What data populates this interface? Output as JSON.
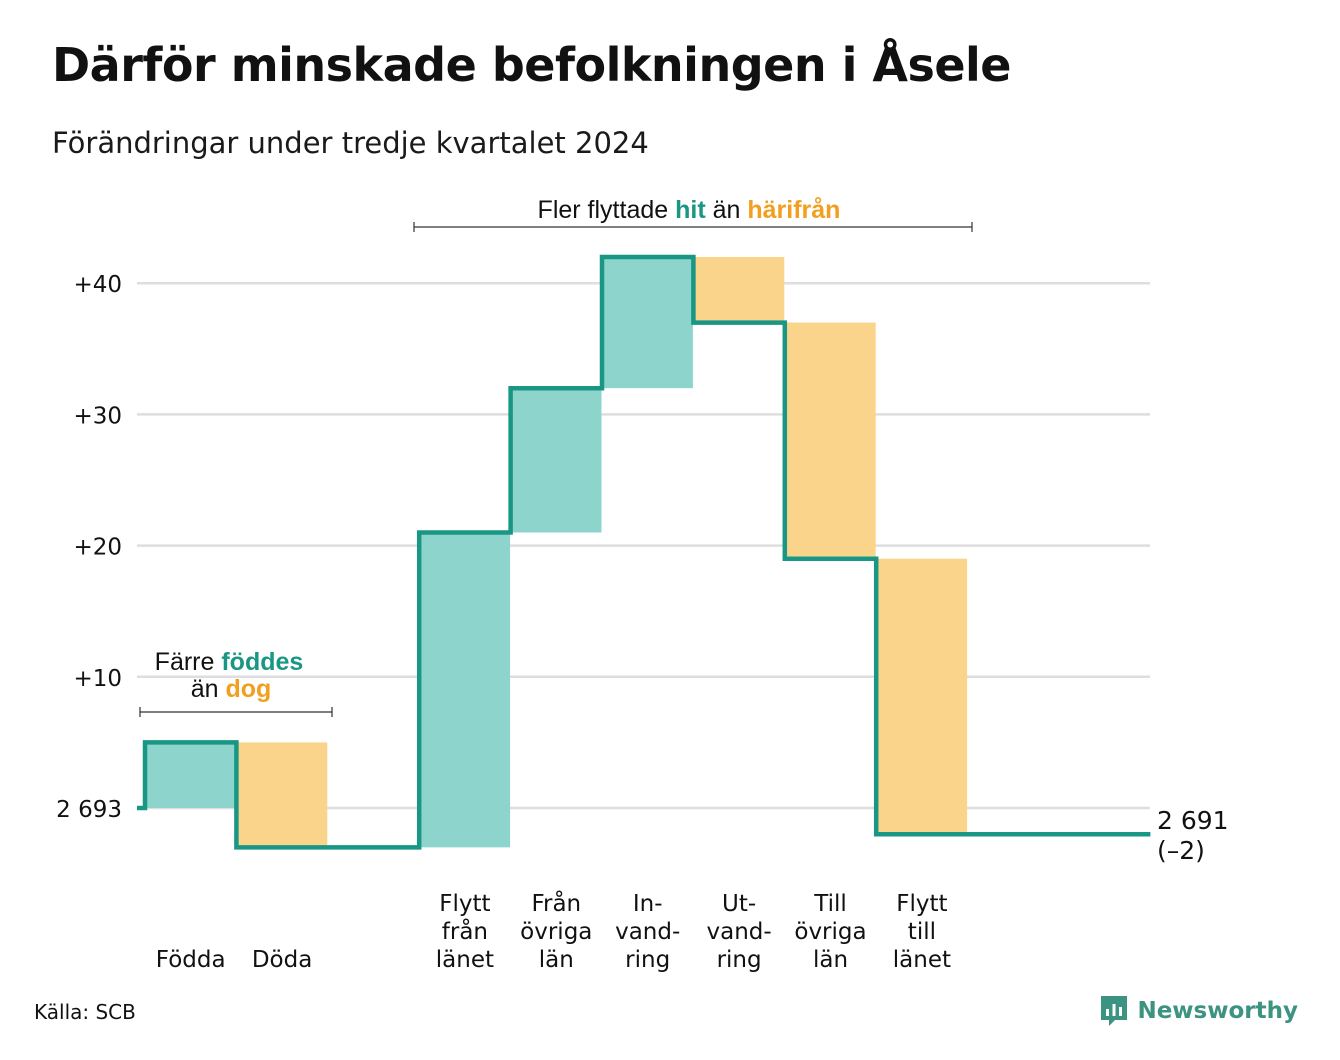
{
  "title": "Därför minskade befolkningen i Åsele",
  "subtitle": "Förändringar under tredje kvartalet 2024",
  "source": "Källa: SCB",
  "brand": "Newsworthy",
  "colors": {
    "increase": "#8dd5cc",
    "decrease": "#fad48b",
    "line": "#1a9784",
    "hit_text": "#1a9784",
    "away_text": "#f29f1f",
    "grid": "#dedede"
  },
  "chart_data": {
    "type": "waterfall",
    "start": {
      "label": "2 693",
      "value": 0
    },
    "end": {
      "label": "2 691",
      "change_label": "(–2)",
      "value": -2
    },
    "ylim": [
      -5,
      45
    ],
    "yticks": [
      {
        "value": 40,
        "label": "+40"
      },
      {
        "value": 30,
        "label": "+30"
      },
      {
        "value": 20,
        "label": "+20"
      },
      {
        "value": 10,
        "label": "+10"
      },
      {
        "value": 0,
        "label": "2 693"
      }
    ],
    "steps": [
      {
        "label": [
          "Födda"
        ],
        "change": 5
      },
      {
        "label": [
          "Döda"
        ],
        "change": -8
      },
      {
        "label": [],
        "change": 0
      },
      {
        "label": [
          "Flytt",
          "från",
          "länet"
        ],
        "change": 24
      },
      {
        "label": [
          "Från",
          "övriga",
          "län"
        ],
        "change": 11
      },
      {
        "label": [
          "In-",
          "vand-",
          "ring"
        ],
        "change": 10
      },
      {
        "label": [
          "Ut-",
          "vand-",
          "ring"
        ],
        "change": -5
      },
      {
        "label": [
          "Till",
          "övriga",
          "län"
        ],
        "change": -18
      },
      {
        "label": [
          "Flytt",
          "till",
          "länet"
        ],
        "change": -21
      },
      {
        "label": [],
        "change": 0
      },
      {
        "label": [],
        "change": 0
      }
    ],
    "annotations": [
      {
        "text": "Färre ",
        "hl1": "föddes",
        "mid": "än ",
        "hl2": "dog"
      },
      {
        "text": "Fler flyttade ",
        "hl1": "hit",
        "mid": " än ",
        "hl2": "härifrån"
      }
    ]
  }
}
